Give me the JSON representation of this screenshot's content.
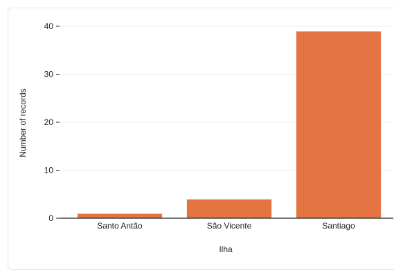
{
  "chart_data": {
    "type": "bar",
    "categories": [
      "Santo Antão",
      "São Vicente",
      "Santiago"
    ],
    "values": [
      1,
      4,
      39
    ],
    "title": "",
    "xlabel": "Ilha",
    "ylabel": "Number of records",
    "ylim": [
      0,
      40
    ],
    "yticks": [
      0,
      10,
      20,
      30,
      40
    ],
    "grid": true,
    "legend": "none",
    "bar_color": "#e47543",
    "grid_color": "#ececec",
    "axis_color": "#222222"
  }
}
